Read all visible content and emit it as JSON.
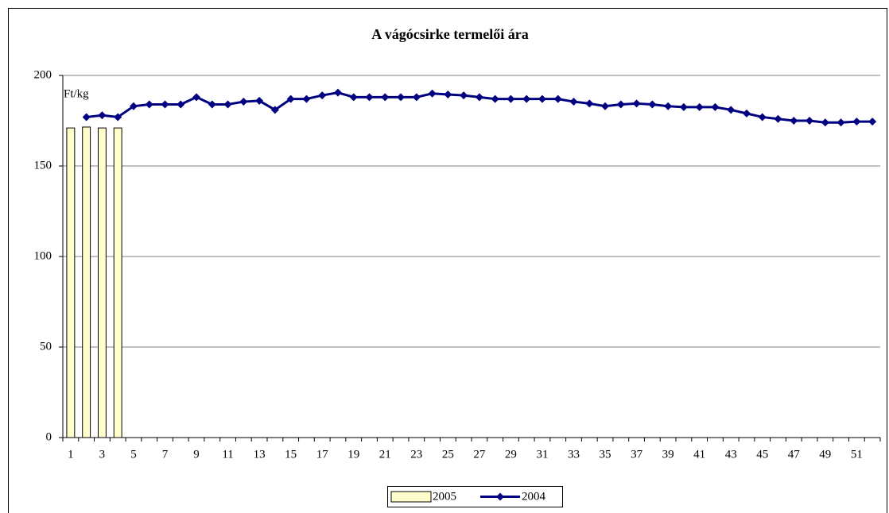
{
  "chart_data": {
    "type": "bar-line",
    "title": "A vágócsirke termelői ára",
    "annotation": "Ft/kg",
    "categories": [
      1,
      null,
      3,
      null,
      5,
      null,
      7,
      null,
      9,
      null,
      11,
      null,
      13,
      null,
      15,
      null,
      17,
      null,
      19,
      null,
      21,
      null,
      23,
      null,
      25,
      null,
      27,
      null,
      29,
      null,
      31,
      null,
      33,
      null,
      35,
      null,
      37,
      null,
      39,
      null,
      41,
      null,
      43,
      null,
      45,
      null,
      47,
      null,
      49,
      null,
      51,
      null
    ],
    "series": [
      {
        "name": "2005",
        "type": "bar",
        "color": "#ffffcc",
        "values": [
          171,
          171.5,
          171,
          171,
          null,
          null,
          null,
          null,
          null,
          null,
          null,
          null,
          null,
          null,
          null,
          null,
          null,
          null,
          null,
          null,
          null,
          null,
          null,
          null,
          null,
          null,
          null,
          null,
          null,
          null,
          null,
          null,
          null,
          null,
          null,
          null,
          null,
          null,
          null,
          null,
          null,
          null,
          null,
          null,
          null,
          null,
          null,
          null,
          null,
          null,
          null,
          null
        ]
      },
      {
        "name": "2004",
        "type": "line",
        "color": "#000080",
        "values": [
          null,
          177,
          178,
          177,
          183,
          184,
          184,
          184,
          188,
          184,
          184,
          185.5,
          186,
          181,
          187,
          187,
          189,
          190.5,
          188,
          188,
          188,
          188,
          188,
          190,
          189.5,
          189,
          188,
          187,
          187,
          187,
          187,
          187,
          185.5,
          184.5,
          183,
          184,
          184.5,
          184,
          183,
          182.5,
          182.5,
          182.5,
          181,
          179,
          177,
          176,
          175,
          175,
          174,
          174,
          174.5,
          174.5
        ]
      }
    ],
    "ylim": [
      0,
      200
    ],
    "yticks": [
      0,
      50,
      100,
      150,
      200
    ],
    "grid": true,
    "legend": "bottom"
  }
}
